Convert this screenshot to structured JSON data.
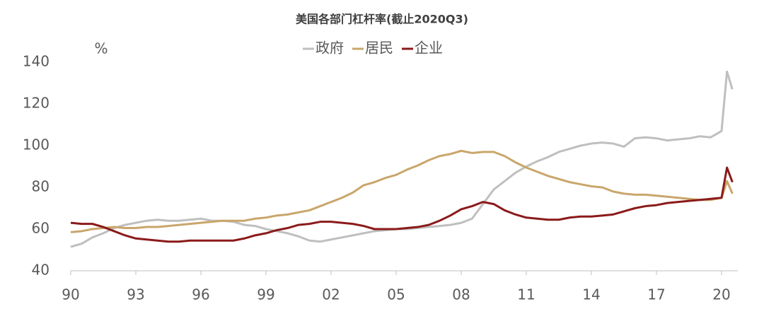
{
  "chart_data": {
    "type": "line",
    "title": "美国各部门杠杆率(截止2020Q3)",
    "y_label": "%",
    "x": [
      1990,
      1990.5,
      1991,
      1991.5,
      1992,
      1992.5,
      1993,
      1993.5,
      1994,
      1994.5,
      1995,
      1995.5,
      1996,
      1996.5,
      1997,
      1997.5,
      1998,
      1998.5,
      1999,
      1999.5,
      2000,
      2000.5,
      2001,
      2001.5,
      2002,
      2002.5,
      2003,
      2003.5,
      2004,
      2004.5,
      2005,
      2005.5,
      2006,
      2006.5,
      2007,
      2007.5,
      2008,
      2008.5,
      2009,
      2009.5,
      2010,
      2010.5,
      2011,
      2011.5,
      2012,
      2012.5,
      2013,
      2013.5,
      2014,
      2014.5,
      2015,
      2015.5,
      2016,
      2016.5,
      2017,
      2017.5,
      2018,
      2018.5,
      2019,
      2019.5,
      2020,
      2020.25,
      2020.5
    ],
    "series": [
      {
        "name": "政府",
        "color": "#bfbfbf",
        "values": [
          51.5,
          53,
          56,
          58,
          60.5,
          62,
          63,
          64,
          64.5,
          64,
          64,
          64.5,
          65,
          64,
          64,
          63.5,
          62,
          61.5,
          60,
          59,
          58,
          56.5,
          54.5,
          54,
          55,
          56,
          57,
          58,
          59,
          59.5,
          60,
          60,
          60.5,
          61,
          61.5,
          62,
          63,
          65,
          72,
          79,
          83,
          87,
          90,
          92.5,
          94.5,
          97,
          98.5,
          100,
          101,
          101.5,
          101,
          99.5,
          103.5,
          104,
          103.5,
          102.5,
          103,
          103.5,
          104.5,
          104,
          107,
          135.5,
          127
        ]
      },
      {
        "name": "居民",
        "color": "#c9a66b",
        "values": [
          58.5,
          59,
          60,
          60.5,
          61,
          60.5,
          60.5,
          61,
          61,
          61.5,
          62,
          62.5,
          63,
          63.5,
          64,
          64,
          64,
          65,
          65.5,
          66.5,
          67,
          68,
          69,
          71,
          73,
          75,
          77.5,
          81,
          82.5,
          84.5,
          86,
          88.5,
          90.5,
          93,
          95,
          96,
          97.5,
          96.5,
          97,
          97,
          95,
          92,
          89.5,
          87.5,
          85.5,
          84,
          82.5,
          81.5,
          80.5,
          80,
          78,
          77,
          76.5,
          76.5,
          76,
          75.5,
          75,
          74.5,
          74,
          74,
          75,
          83,
          77
        ]
      },
      {
        "name": "企业",
        "color": "#8b1a1a",
        "values": [
          63,
          62.5,
          62.5,
          61,
          59,
          57,
          55.5,
          55,
          54.5,
          54,
          54,
          54.5,
          54.5,
          54.5,
          54.5,
          54.5,
          55.5,
          57,
          58,
          59.5,
          60.5,
          62,
          62.5,
          63.5,
          63.5,
          63,
          62.5,
          61.5,
          60,
          60,
          60,
          60.5,
          61,
          62,
          64,
          66.5,
          69.5,
          71,
          73,
          72,
          69,
          67,
          65.5,
          65,
          64.5,
          64.5,
          65.5,
          66,
          66,
          66.5,
          67,
          68.5,
          70,
          71,
          71.5,
          72.5,
          73,
          73.5,
          74,
          74.5,
          75,
          89.5,
          82.5
        ]
      }
    ],
    "xlim": [
      1990,
      2020.75
    ],
    "xticks": [
      {
        "value": 1990,
        "label": "90"
      },
      {
        "value": 1993,
        "label": "93"
      },
      {
        "value": 1996,
        "label": "96"
      },
      {
        "value": 1999,
        "label": "99"
      },
      {
        "value": 2002,
        "label": "02"
      },
      {
        "value": 2005,
        "label": "05"
      },
      {
        "value": 2008,
        "label": "08"
      },
      {
        "value": 2011,
        "label": "11"
      },
      {
        "value": 2014,
        "label": "14"
      },
      {
        "value": 2017,
        "label": "17"
      },
      {
        "value": 2020,
        "label": "20"
      }
    ],
    "ylim": [
      40,
      140
    ],
    "yticks": [
      40,
      60,
      80,
      100,
      120,
      140
    ],
    "grid": false,
    "legend": "top"
  }
}
